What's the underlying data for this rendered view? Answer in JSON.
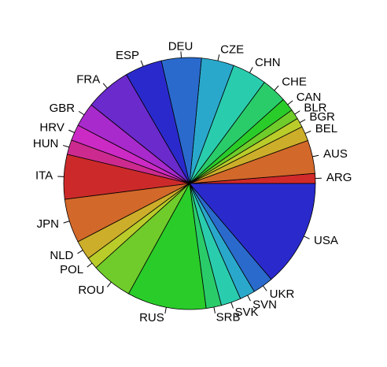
{
  "chart_data": {
    "type": "pie",
    "title": "",
    "start_angle_deg": 0,
    "direction": "counterclockwise",
    "slices": [
      {
        "label": "ARG",
        "value": 1.5,
        "color": "#D12A2A"
      },
      {
        "label": "AUS",
        "value": 5.0,
        "color": "#D2682A"
      },
      {
        "label": "BEL",
        "value": 2.2,
        "color": "#CCAE2A"
      },
      {
        "label": "BGR",
        "value": 1.4,
        "color": "#B9CC2A"
      },
      {
        "label": "BLR",
        "value": 1.5,
        "color": "#6FCC2A"
      },
      {
        "label": "CAN",
        "value": 2.0,
        "color": "#2ACC2A"
      },
      {
        "label": "CHE",
        "value": 3.8,
        "color": "#2ACC6A"
      },
      {
        "label": "CHN",
        "value": 5.2,
        "color": "#2ACCAE"
      },
      {
        "label": "CZE",
        "value": 4.9,
        "color": "#2AA8CC"
      },
      {
        "label": "DEU",
        "value": 6.0,
        "color": "#2A6ACC"
      },
      {
        "label": "ESP",
        "value": 5.6,
        "color": "#2A2ACC"
      },
      {
        "label": "FRA",
        "value": 6.9,
        "color": "#6A2ACC"
      },
      {
        "label": "GBR",
        "value": 3.6,
        "color": "#A82ACC"
      },
      {
        "label": "HRV",
        "value": 2.4,
        "color": "#CC2AC4"
      },
      {
        "label": "HUN",
        "value": 2.2,
        "color": "#CC2A8E"
      },
      {
        "label": "ITA",
        "value": 6.7,
        "color": "#CC2A2A"
      },
      {
        "label": "JPN",
        "value": 6.6,
        "color": "#D2682A"
      },
      {
        "label": "NLD",
        "value": 2.9,
        "color": "#CCAE2A"
      },
      {
        "label": "POL",
        "value": 1.8,
        "color": "#B9CC2A"
      },
      {
        "label": "ROU",
        "value": 6.2,
        "color": "#6FCC2A"
      },
      {
        "label": "RUS",
        "value": 11.9,
        "color": "#2ACC2A"
      },
      {
        "label": "SRB",
        "value": 2.3,
        "color": "#2ACC6A"
      },
      {
        "label": "SVK",
        "value": 3.0,
        "color": "#2ACCAE"
      },
      {
        "label": "SVN",
        "value": 2.3,
        "color": "#2AA8CC"
      },
      {
        "label": "UKR",
        "value": 3.1,
        "color": "#2A6ACC"
      },
      {
        "label": "USA",
        "value": 16.1,
        "color": "#2A2ACC"
      }
    ]
  }
}
